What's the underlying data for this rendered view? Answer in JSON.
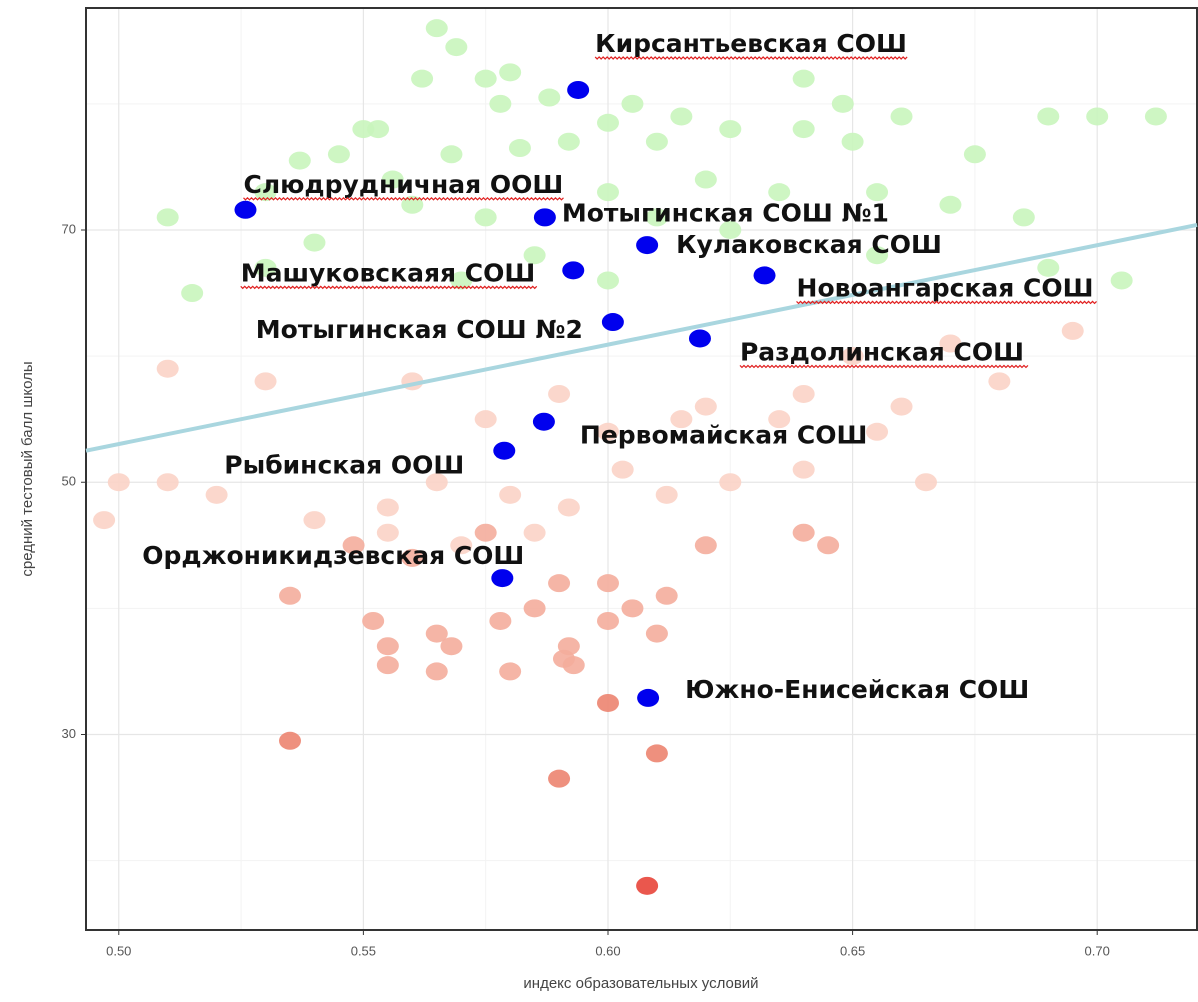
{
  "chart_data": {
    "type": "scatter",
    "x_label": "индекс образовательных условий",
    "y_label": "средний тестовый балл школы",
    "xlim": [
      0.4933,
      0.7204
    ],
    "ylim": [
      14.5,
      87.6
    ],
    "xticks": [
      {
        "value": 0.5,
        "label": "0.50"
      },
      0.55,
      {
        "value": 0.6,
        "label": "0.60"
      },
      0.65,
      {
        "value": 0.7,
        "label": "0.70"
      }
    ],
    "yticks": [
      30,
      50,
      70
    ],
    "x_minor_ticks": [
      0.525,
      0.575,
      0.625,
      0.675
    ],
    "y_minor_ticks": [
      20,
      40,
      60,
      80
    ],
    "grid": true,
    "trend_line": {
      "x": [
        0.4933,
        0.7204
      ],
      "values": [
        52.5,
        70.4
      ],
      "color": "#a9d6df"
    },
    "series": [
      {
        "color": "#c9f5bd",
        "x": [
          0.565,
          0.569,
          0.562,
          0.575,
          0.58,
          0.588,
          0.578,
          0.6,
          0.605,
          0.615,
          0.55,
          0.553,
          0.545,
          0.568,
          0.582,
          0.592,
          0.61,
          0.625,
          0.64,
          0.648,
          0.65,
          0.64,
          0.66,
          0.675,
          0.69,
          0.7,
          0.712,
          0.537,
          0.556,
          0.51,
          0.53,
          0.56,
          0.575,
          0.6,
          0.62,
          0.635,
          0.655,
          0.67,
          0.685,
          0.54,
          0.585,
          0.61,
          0.625,
          0.6,
          0.57,
          0.515,
          0.53,
          0.655,
          0.69,
          0.705
        ],
        "values": [
          86,
          84.5,
          82,
          82,
          82.5,
          80.5,
          80,
          78.5,
          80,
          79,
          78,
          78,
          76,
          76,
          76.5,
          77,
          77,
          78,
          78,
          80,
          77,
          82,
          79,
          76,
          79,
          79,
          79,
          75.5,
          74,
          71,
          73,
          72,
          71,
          73,
          74,
          73,
          73,
          72,
          71,
          69,
          68,
          71,
          70,
          66,
          66,
          65,
          67,
          68,
          67,
          66
        ]
      },
      {
        "color": "#fbd3c6",
        "x": [
          0.51,
          0.53,
          0.56,
          0.59,
          0.62,
          0.64,
          0.66,
          0.68,
          0.695,
          0.67,
          0.65,
          0.575,
          0.6,
          0.615,
          0.635,
          0.655,
          0.5,
          0.51,
          0.52,
          0.54,
          0.555,
          0.565,
          0.58,
          0.592,
          0.603,
          0.612,
          0.625,
          0.64,
          0.665,
          0.497,
          0.555,
          0.57,
          0.585
        ],
        "values": [
          59,
          58,
          58,
          57,
          56,
          57,
          56,
          58,
          62,
          61,
          60,
          55,
          54,
          55,
          55,
          54,
          50,
          50,
          49,
          47,
          48,
          50,
          49,
          48,
          51,
          49,
          50,
          51,
          50,
          47,
          46,
          45,
          46
        ]
      },
      {
        "color": "#f4ad9c",
        "x": [
          0.548,
          0.56,
          0.575,
          0.59,
          0.6,
          0.605,
          0.612,
          0.62,
          0.64,
          0.645,
          0.535,
          0.552,
          0.565,
          0.578,
          0.585,
          0.592,
          0.6,
          0.61,
          0.555,
          0.568,
          0.58,
          0.591,
          0.593,
          0.565,
          0.555
        ],
        "values": [
          45,
          44,
          46,
          42,
          42,
          40,
          41,
          45,
          46,
          45,
          41,
          39,
          38,
          39,
          40,
          37,
          39,
          38,
          37,
          37,
          35,
          36,
          35.5,
          35,
          35.5
        ]
      },
      {
        "color": "#ec8470",
        "x": [
          0.535,
          0.6,
          0.59,
          0.61
        ],
        "values": [
          29.5,
          32.5,
          26.5,
          28.5
        ]
      },
      {
        "color": "#e8453a",
        "x": [
          0.608
        ],
        "values": [
          18
        ]
      },
      {
        "color": "#0000ee",
        "x": [
          0.5939,
          0.5259,
          0.5871,
          0.608,
          0.5929,
          0.632,
          0.601,
          0.6188,
          0.5869,
          0.5788,
          0.5784,
          0.6082
        ],
        "values": [
          81.1,
          71.6,
          71.0,
          68.8,
          66.8,
          66.4,
          62.7,
          61.4,
          54.8,
          52.5,
          42.4,
          32.9
        ],
        "labels": [
          "Кирсантьевская СОШ",
          "Слюдрудничная ООШ",
          "Мотыгинская СОШ №1",
          "Кулаковская СОШ",
          "Машуковскаяя СОШ",
          "Новоангарская СОШ",
          "Мотыгинская СОШ №2",
          "Раздолинская СОШ",
          "Первомайская СОШ",
          "Рыбинская ООШ",
          "Орджоникидзевская СОШ",
          "Южно-Енисейская СОШ"
        ]
      }
    ]
  }
}
